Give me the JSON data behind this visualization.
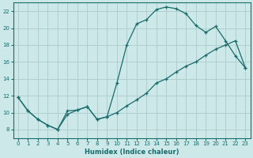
{
  "title": "",
  "xlabel": "Humidex (Indice chaleur)",
  "ylabel": "",
  "bg_color": "#cce8e8",
  "line_color": "#1a6b6b",
  "grid_color": "#b0d0d0",
  "xlim": [
    -0.5,
    23.5
  ],
  "ylim": [
    7,
    23
  ],
  "yticks": [
    8,
    10,
    12,
    14,
    16,
    18,
    20,
    22
  ],
  "xticks": [
    0,
    1,
    2,
    3,
    4,
    5,
    6,
    7,
    8,
    9,
    10,
    11,
    12,
    13,
    14,
    15,
    16,
    17,
    18,
    19,
    20,
    21,
    22,
    23
  ],
  "line1_x": [
    0,
    1,
    2,
    3,
    4,
    5,
    6,
    7,
    8,
    9,
    10,
    11,
    12,
    13,
    14,
    15,
    16,
    17,
    18,
    19,
    20,
    21,
    22,
    23
  ],
  "line1_y": [
    11.8,
    10.2,
    9.2,
    8.5,
    8.0,
    10.2,
    10.3,
    10.7,
    9.2,
    9.5,
    13.5,
    18.0,
    20.5,
    21.0,
    22.2,
    22.5,
    22.3,
    21.7,
    20.3,
    19.5,
    20.2,
    18.5,
    16.7,
    15.3
  ],
  "line2_x": [
    0,
    1,
    2,
    3,
    4,
    5,
    6,
    7,
    8,
    9,
    10,
    11,
    12,
    13,
    14,
    15,
    16,
    17,
    18,
    19,
    20,
    21,
    22,
    23
  ],
  "line2_y": [
    11.8,
    10.2,
    9.2,
    8.5,
    8.0,
    9.8,
    10.3,
    10.7,
    9.2,
    9.5,
    10.0,
    10.8,
    11.5,
    12.3,
    13.5,
    14.0,
    14.8,
    15.5,
    16.0,
    16.8,
    17.5,
    18.0,
    18.5,
    15.3
  ]
}
